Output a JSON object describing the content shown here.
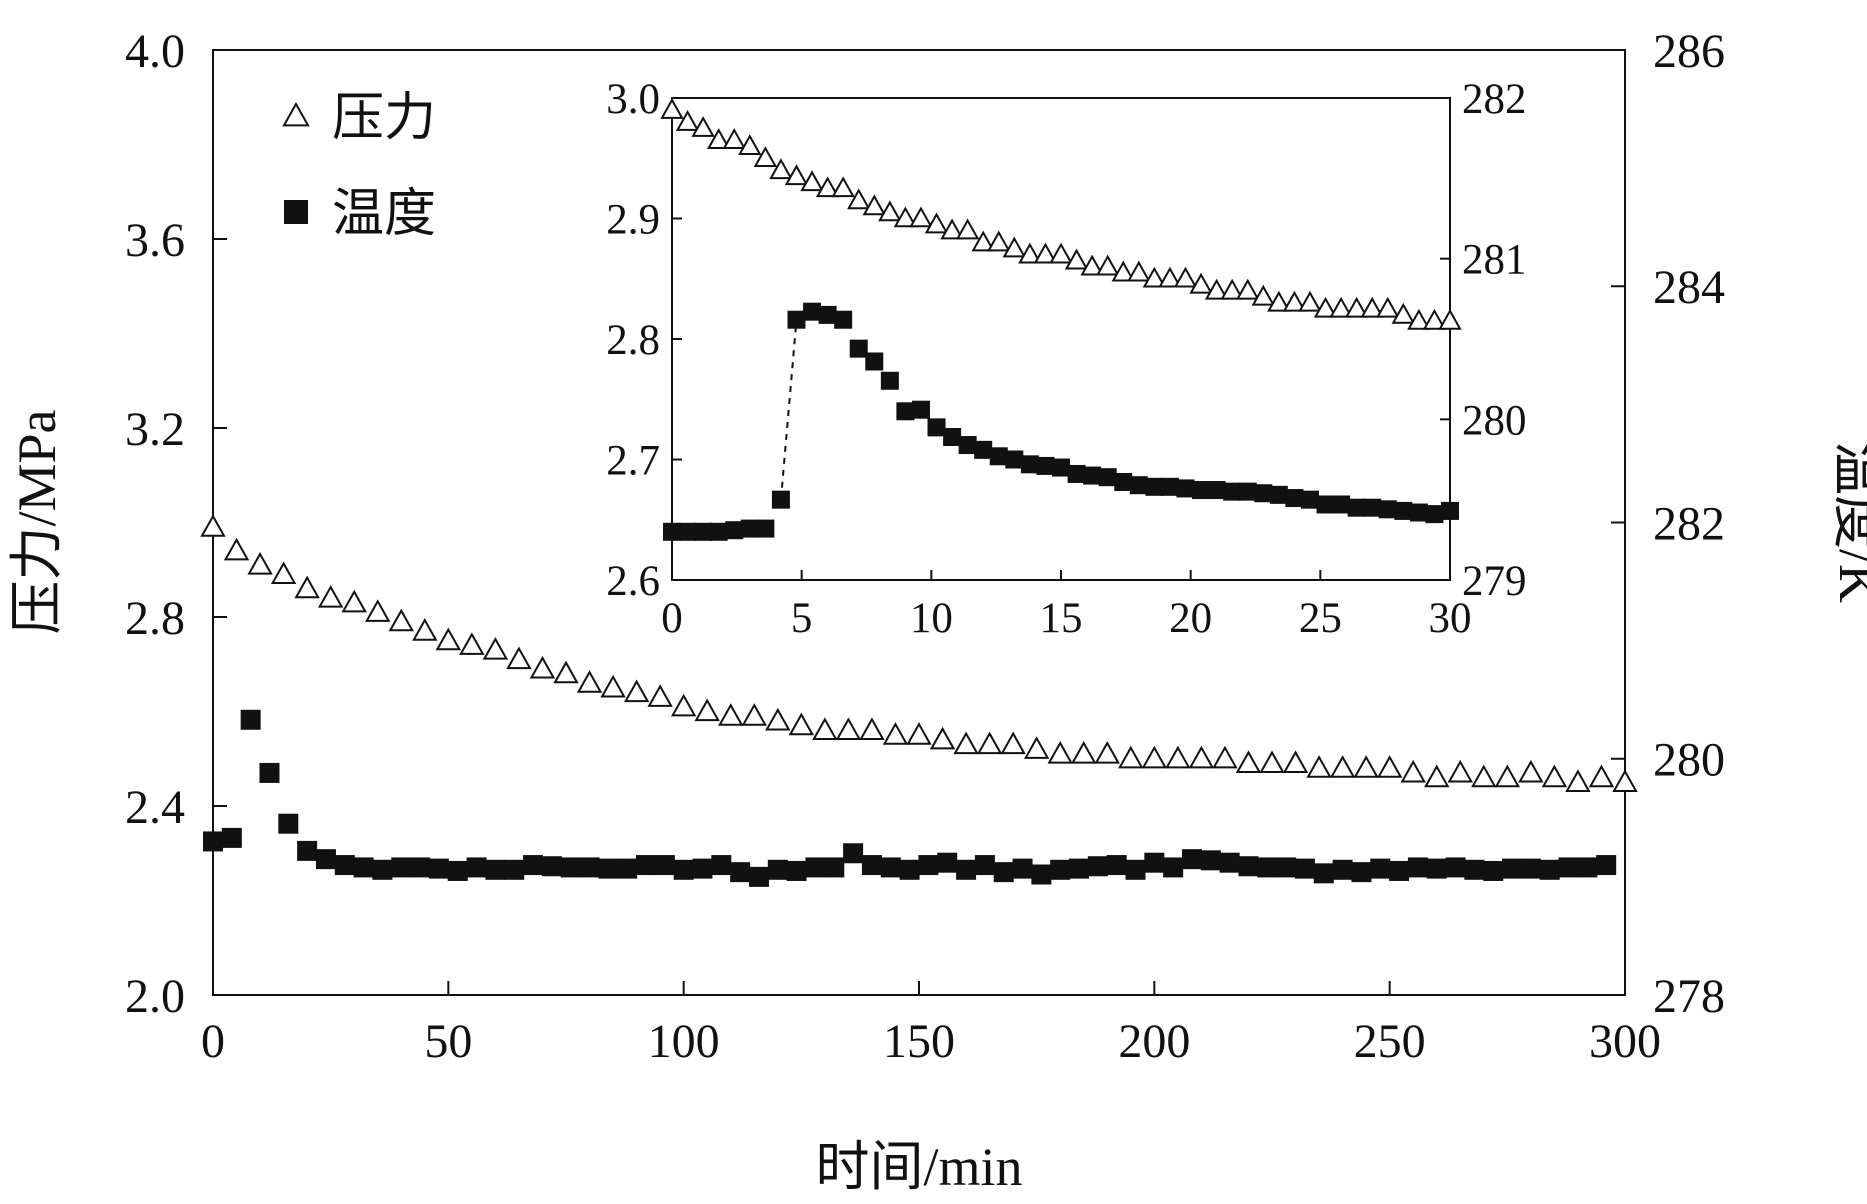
{
  "chart_data": [
    {
      "type": "scatter",
      "role": "main",
      "xlabel": "时间/min",
      "ylabel_left": "压力/MPa",
      "ylabel_right": "温度/K",
      "xlim": [
        0,
        300
      ],
      "ylim_left": [
        2.0,
        4.0
      ],
      "ylim_right": [
        278,
        286
      ],
      "x_ticks": [
        0,
        50,
        100,
        150,
        200,
        250,
        300
      ],
      "y_ticks_left": [
        2.0,
        2.4,
        2.8,
        3.2,
        3.6,
        4.0
      ],
      "y_ticks_right": [
        278,
        280,
        282,
        284,
        286
      ],
      "legend_position": "top-left",
      "series": [
        {
          "name": "压力",
          "axis": "left",
          "marker": "open-triangle",
          "x": [
            0,
            5,
            10,
            15,
            20,
            25,
            30,
            35,
            40,
            45,
            50,
            55,
            60,
            65,
            70,
            75,
            80,
            85,
            90,
            95,
            100,
            105,
            110,
            115,
            120,
            125,
            130,
            135,
            140,
            145,
            150,
            155,
            160,
            165,
            170,
            175,
            180,
            185,
            190,
            195,
            200,
            205,
            210,
            215,
            220,
            225,
            230,
            235,
            240,
            245,
            250,
            255,
            260,
            265,
            270,
            275,
            280,
            285,
            290,
            295,
            300
          ],
          "y": [
            2.99,
            2.94,
            2.91,
            2.89,
            2.86,
            2.84,
            2.83,
            2.81,
            2.79,
            2.77,
            2.75,
            2.74,
            2.73,
            2.71,
            2.69,
            2.68,
            2.66,
            2.65,
            2.64,
            2.63,
            2.61,
            2.6,
            2.59,
            2.59,
            2.58,
            2.57,
            2.56,
            2.56,
            2.56,
            2.55,
            2.55,
            2.54,
            2.53,
            2.53,
            2.53,
            2.52,
            2.51,
            2.51,
            2.51,
            2.5,
            2.5,
            2.5,
            2.5,
            2.5,
            2.49,
            2.49,
            2.49,
            2.48,
            2.48,
            2.48,
            2.48,
            2.47,
            2.46,
            2.47,
            2.46,
            2.46,
            2.47,
            2.46,
            2.45,
            2.46,
            2.45
          ]
        },
        {
          "name": "温度",
          "axis": "right",
          "marker": "filled-square",
          "x": [
            0,
            4,
            8,
            12,
            16,
            20,
            24,
            28,
            32,
            36,
            40,
            44,
            48,
            52,
            56,
            60,
            64,
            68,
            72,
            76,
            80,
            84,
            88,
            92,
            96,
            100,
            104,
            108,
            112,
            116,
            120,
            124,
            128,
            132,
            136,
            140,
            144,
            148,
            152,
            156,
            160,
            164,
            168,
            172,
            176,
            180,
            184,
            188,
            192,
            196,
            200,
            204,
            208,
            212,
            216,
            220,
            224,
            228,
            232,
            236,
            240,
            244,
            248,
            252,
            256,
            260,
            264,
            268,
            272,
            276,
            280,
            284,
            288,
            292,
            296
          ],
          "y": [
            279.3,
            279.33,
            280.33,
            279.88,
            279.45,
            279.22,
            279.15,
            279.1,
            279.08,
            279.06,
            279.08,
            279.08,
            279.07,
            279.05,
            279.08,
            279.06,
            279.06,
            279.1,
            279.09,
            279.08,
            279.08,
            279.07,
            279.07,
            279.1,
            279.1,
            279.06,
            279.07,
            279.1,
            279.04,
            279.0,
            279.06,
            279.05,
            279.08,
            279.08,
            279.2,
            279.1,
            279.08,
            279.06,
            279.1,
            279.12,
            279.06,
            279.1,
            279.04,
            279.07,
            279.02,
            279.06,
            279.07,
            279.09,
            279.1,
            279.06,
            279.12,
            279.08,
            279.15,
            279.14,
            279.12,
            279.09,
            279.08,
            279.08,
            279.07,
            279.03,
            279.06,
            279.04,
            279.07,
            279.05,
            279.08,
            279.07,
            279.08,
            279.06,
            279.05,
            279.07,
            279.07,
            279.06,
            279.08,
            279.08,
            279.1
          ]
        }
      ]
    },
    {
      "type": "scatter",
      "role": "inset",
      "xlim": [
        0,
        30
      ],
      "ylim_left": [
        2.6,
        3.0
      ],
      "ylim_right": [
        279,
        282
      ],
      "x_ticks": [
        0,
        5,
        10,
        15,
        20,
        25,
        30
      ],
      "y_ticks_left": [
        2.6,
        2.7,
        2.8,
        2.9,
        3.0
      ],
      "y_ticks_right": [
        279,
        280,
        281,
        282
      ],
      "series": [
        {
          "name": "压力",
          "axis": "left",
          "marker": "open-triangle",
          "x": [
            0,
            0.6,
            1.2,
            1.8,
            2.4,
            3.0,
            3.6,
            4.2,
            4.8,
            5.4,
            6.0,
            6.6,
            7.2,
            7.8,
            8.4,
            9.0,
            9.6,
            10.2,
            10.8,
            11.4,
            12.0,
            12.6,
            13.2,
            13.8,
            14.4,
            15.0,
            15.6,
            16.2,
            16.8,
            17.4,
            18.0,
            18.6,
            19.2,
            19.8,
            20.4,
            21.0,
            21.6,
            22.2,
            22.8,
            23.4,
            24.0,
            24.6,
            25.2,
            25.8,
            26.4,
            27.0,
            27.6,
            28.2,
            28.8,
            29.4,
            30.0
          ],
          "y": [
            2.99,
            2.98,
            2.975,
            2.965,
            2.965,
            2.96,
            2.95,
            2.94,
            2.935,
            2.93,
            2.925,
            2.925,
            2.915,
            2.91,
            2.905,
            2.9,
            2.9,
            2.895,
            2.89,
            2.89,
            2.88,
            2.88,
            2.875,
            2.87,
            2.87,
            2.87,
            2.865,
            2.86,
            2.86,
            2.855,
            2.855,
            2.85,
            2.85,
            2.85,
            2.845,
            2.84,
            2.84,
            2.84,
            2.835,
            2.83,
            2.83,
            2.83,
            2.825,
            2.825,
            2.825,
            2.825,
            2.825,
            2.82,
            2.815,
            2.815,
            2.815
          ]
        },
        {
          "name": "温度",
          "axis": "right",
          "marker": "filled-square",
          "x": [
            0,
            0.6,
            1.2,
            1.8,
            2.4,
            3.0,
            3.6,
            4.2,
            4.8,
            5.4,
            6.0,
            6.6,
            7.2,
            7.8,
            8.4,
            9.0,
            9.6,
            10.2,
            10.8,
            11.4,
            12.0,
            12.6,
            13.2,
            13.8,
            14.4,
            15.0,
            15.6,
            16.2,
            16.8,
            17.4,
            18.0,
            18.6,
            19.2,
            19.8,
            20.4,
            21.0,
            21.6,
            22.2,
            22.8,
            23.4,
            24.0,
            24.6,
            25.2,
            25.8,
            26.4,
            27.0,
            27.6,
            28.2,
            28.8,
            29.4,
            30.0
          ],
          "y": [
            279.3,
            279.3,
            279.3,
            279.3,
            279.31,
            279.32,
            279.32,
            279.5,
            280.62,
            280.67,
            280.65,
            280.62,
            280.44,
            280.36,
            280.24,
            280.05,
            280.06,
            279.95,
            279.89,
            279.84,
            279.81,
            279.77,
            279.75,
            279.72,
            279.71,
            279.7,
            279.66,
            279.65,
            279.64,
            279.61,
            279.59,
            279.58,
            279.58,
            279.57,
            279.56,
            279.56,
            279.55,
            279.55,
            279.54,
            279.53,
            279.51,
            279.5,
            279.47,
            279.47,
            279.45,
            279.45,
            279.44,
            279.43,
            279.42,
            279.41,
            279.43
          ]
        }
      ]
    }
  ]
}
